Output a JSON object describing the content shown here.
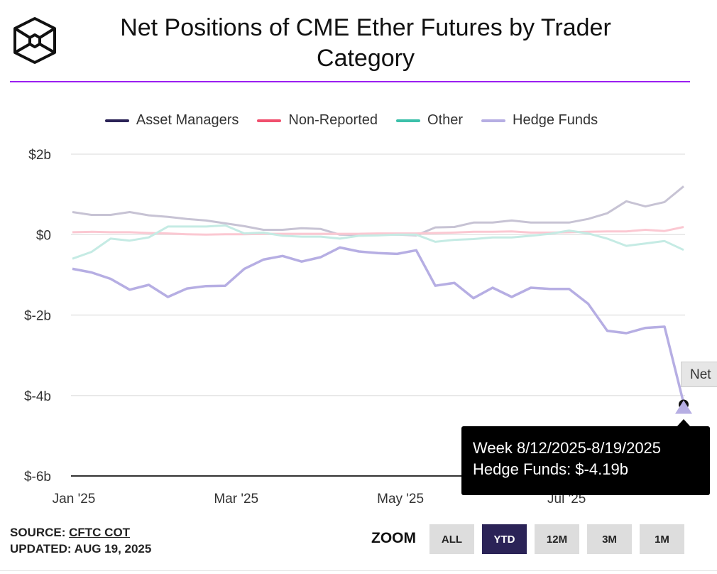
{
  "header": {
    "title": "Net Positions of CME Ether Futures by Trader Category",
    "logo": "block-research-hexagon-logo"
  },
  "colors": {
    "accent": "#9b1ff0",
    "asset_managers": "#2b2357",
    "non_reported": "#f0506e",
    "other": "#3cc0aa",
    "hedge_funds": "#b6aee3"
  },
  "chart_data": {
    "type": "line",
    "title": "Net Positions of CME Ether Futures by Trader Category",
    "xlabel": "",
    "ylabel": "",
    "ylim": [
      -6,
      2
    ],
    "y_ticks": [
      {
        "v": 2,
        "label": "$2b"
      },
      {
        "v": 0,
        "label": "$0"
      },
      {
        "v": -2,
        "label": "$-2b"
      },
      {
        "v": -4,
        "label": "$-4b"
      },
      {
        "v": -6,
        "label": "$-6b"
      }
    ],
    "x_ticks": [
      {
        "i": 0,
        "label": "Jan '25"
      },
      {
        "i": 8.5,
        "label": "Mar '25"
      },
      {
        "i": 17.1,
        "label": "May '25"
      },
      {
        "i": 25.8,
        "label": "Jul '25"
      }
    ],
    "x_count": 33,
    "x_start": "Week ending 1/7/2025",
    "x_end": "Week ending 8/19/2025",
    "legend_position": "top-center",
    "grid": true,
    "series": [
      {
        "name": "Asset Managers",
        "values": [
          0.56,
          0.49,
          0.49,
          0.56,
          0.48,
          0.44,
          0.39,
          0.35,
          0.28,
          0.21,
          0.12,
          0.12,
          0.16,
          0.14,
          0.0,
          -0.01,
          -0.01,
          0.0,
          -0.02,
          0.18,
          0.19,
          0.3,
          0.3,
          0.35,
          0.3,
          0.3,
          0.3,
          0.39,
          0.53,
          0.83,
          0.7,
          0.81,
          1.2
        ]
      },
      {
        "name": "Non-Reported",
        "values": [
          0.06,
          0.07,
          0.06,
          0.06,
          0.04,
          0.03,
          0.01,
          0.0,
          0.01,
          0.01,
          0.02,
          0.02,
          0.02,
          0.02,
          0.02,
          0.02,
          0.03,
          0.03,
          0.03,
          0.04,
          0.05,
          0.07,
          0.07,
          0.08,
          0.05,
          0.05,
          0.06,
          0.07,
          0.08,
          0.08,
          0.12,
          0.09,
          0.19
        ]
      },
      {
        "name": "Other",
        "values": [
          -0.6,
          -0.43,
          -0.1,
          -0.15,
          -0.07,
          0.2,
          0.2,
          0.2,
          0.23,
          0.03,
          0.05,
          -0.03,
          -0.05,
          -0.05,
          -0.1,
          -0.03,
          -0.02,
          0.0,
          0.0,
          -0.18,
          -0.13,
          -0.11,
          -0.07,
          -0.07,
          -0.03,
          0.02,
          0.1,
          0.03,
          -0.1,
          -0.28,
          -0.22,
          -0.16,
          -0.38
        ]
      },
      {
        "name": "Hedge Funds",
        "values": [
          -0.85,
          -0.94,
          -1.1,
          -1.37,
          -1.25,
          -1.55,
          -1.34,
          -1.28,
          -1.27,
          -0.85,
          -0.62,
          -0.53,
          -0.67,
          -0.56,
          -0.32,
          -0.42,
          -0.46,
          -0.48,
          -0.39,
          -1.27,
          -1.2,
          -1.58,
          -1.32,
          -1.55,
          -1.32,
          -1.35,
          -1.35,
          -1.72,
          -2.39,
          -2.45,
          -2.32,
          -2.29,
          -4.19
        ]
      }
    ],
    "highlighted_series": "Hedge Funds",
    "tooltip": {
      "line1": "Week 8/12/2025-8/19/2025",
      "line2": "Hedge Funds: $-4.19b"
    },
    "partial_label": "Net"
  },
  "footer": {
    "source_label": "SOURCE: ",
    "source_link": "CFTC COT",
    "updated": "UPDATED: AUG 19, 2025"
  },
  "zoom": {
    "label": "ZOOM",
    "buttons": [
      "ALL",
      "YTD",
      "12M",
      "3M",
      "1M"
    ],
    "active": "YTD"
  }
}
